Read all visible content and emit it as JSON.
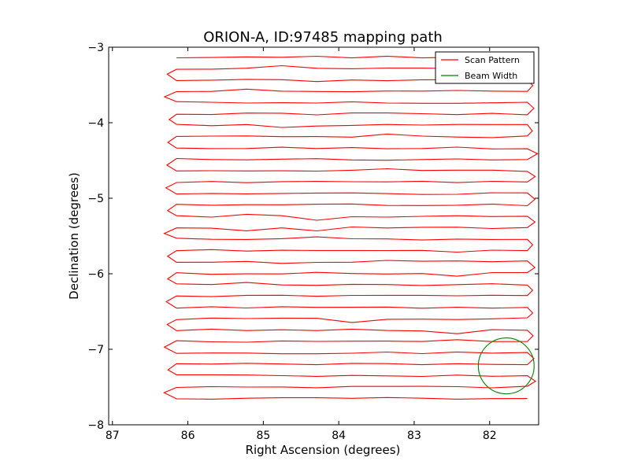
{
  "chart_data": {
    "type": "line",
    "title": "ORION-A, ID:97485 mapping path",
    "xlabel": "Right Ascension (degrees)",
    "ylabel": "Declination (degrees)",
    "xlim": [
      87.05,
      81.35
    ],
    "ylim": [
      -8,
      -3
    ],
    "x_ticks": [
      87,
      86,
      85,
      84,
      83,
      82
    ],
    "y_ticks": [
      -3,
      -4,
      -5,
      -6,
      -7,
      -8
    ],
    "x_tick_labels": [
      "87",
      "86",
      "85",
      "84",
      "83",
      "82"
    ],
    "y_tick_labels": [
      "−3",
      "−4",
      "−5",
      "−6",
      "−7",
      "−8"
    ],
    "grid": false,
    "legend_position": "top-right",
    "series": [
      {
        "name": "Scan Pattern",
        "color": "#ff0000",
        "scan": {
          "dec_start": -3.13,
          "dec_end": -7.65,
          "n_lines": 31,
          "ra_left": 86.15,
          "ra_right": 81.5,
          "ra_turn_left": 86.28,
          "ra_turn_right": 81.4
        }
      },
      {
        "name": "Beam Width",
        "color": "#008000",
        "circle": {
          "center_ra": 81.78,
          "center_dec": -7.22,
          "radius_deg": 0.37
        }
      }
    ]
  }
}
